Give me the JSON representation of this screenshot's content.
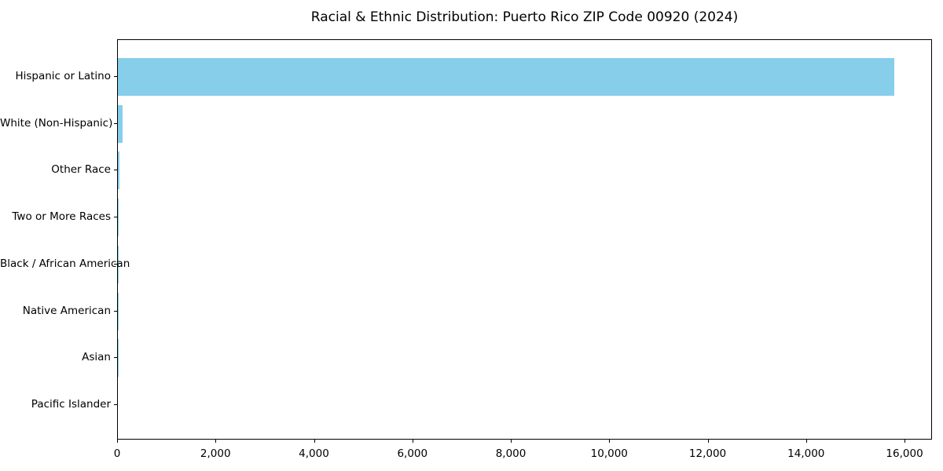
{
  "title": "Racial & Ethnic Distribution: Puerto Rico ZIP Code 00920 (2024)",
  "chart_data": {
    "type": "bar",
    "orientation": "horizontal",
    "title": "Racial & Ethnic Distribution: Puerto Rico ZIP Code 00920 (2024)",
    "categories": [
      "Hispanic or Latino",
      "White (Non-Hispanic)",
      "Other Race",
      "Two or More Races",
      "Black / African American",
      "Native American",
      "Asian",
      "Pacific Islander"
    ],
    "values": [
      15775,
      100,
      25,
      20,
      5,
      3,
      2,
      0
    ],
    "xlabel": "",
    "ylabel": "",
    "xlim": [
      0,
      16558
    ],
    "x_ticks": [
      0,
      2000,
      4000,
      6000,
      8000,
      10000,
      12000,
      14000,
      16000
    ],
    "x_tick_labels": [
      "0",
      "2,000",
      "4,000",
      "6,000",
      "8,000",
      "10,000",
      "12,000",
      "14,000",
      "16,000"
    ],
    "bar_color": "#87CEEB",
    "axis_color": "#000000",
    "background_color": "#ffffff",
    "grid": false,
    "legend": false
  }
}
